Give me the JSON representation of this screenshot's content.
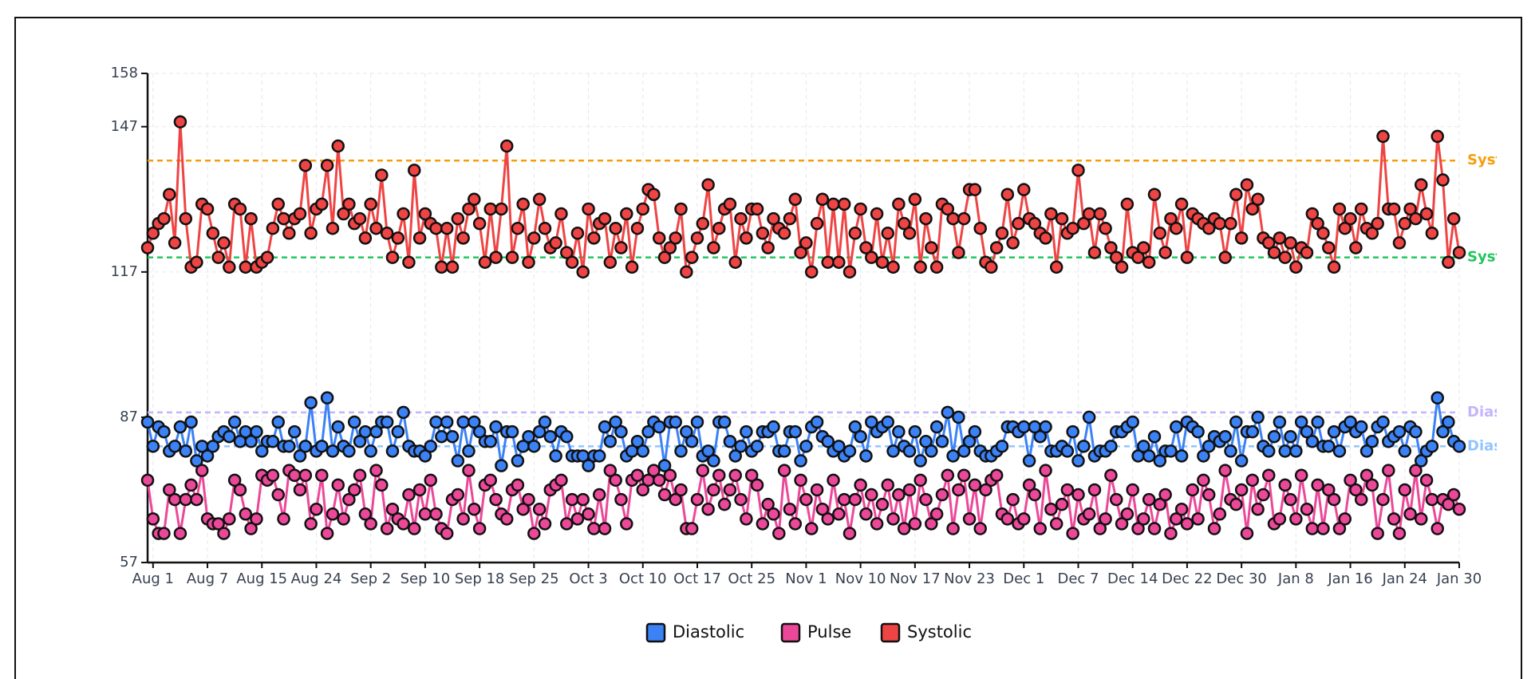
{
  "chart_data": {
    "type": "line",
    "categories": [
      null,
      "Aug 1",
      null,
      null,
      null,
      null,
      null,
      null,
      null,
      null,
      null,
      "Aug 7",
      null,
      null,
      null,
      null,
      null,
      null,
      null,
      null,
      null,
      "Aug 15",
      null,
      null,
      null,
      null,
      null,
      null,
      null,
      null,
      null,
      "Aug 24",
      null,
      null,
      null,
      null,
      null,
      null,
      null,
      null,
      null,
      "Sep 2",
      null,
      null,
      null,
      null,
      null,
      null,
      null,
      null,
      null,
      "Sep 10",
      null,
      null,
      null,
      null,
      null,
      null,
      null,
      null,
      null,
      "Sep 18",
      null,
      null,
      null,
      null,
      null,
      null,
      null,
      null,
      null,
      "Sep 25",
      null,
      null,
      null,
      null,
      null,
      null,
      null,
      null,
      null,
      "Oct 3",
      null,
      null,
      null,
      null,
      null,
      null,
      null,
      null,
      null,
      "Oct 10",
      null,
      null,
      null,
      null,
      null,
      null,
      null,
      null,
      null,
      "Oct 17",
      null,
      null,
      null,
      null,
      null,
      null,
      null,
      null,
      null,
      "Oct 25",
      null,
      null,
      null,
      null,
      null,
      null,
      null,
      null,
      null,
      "Nov 1",
      null,
      null,
      null,
      null,
      null,
      null,
      null,
      null,
      null,
      "Nov 10",
      null,
      null,
      null,
      null,
      null,
      null,
      null,
      null,
      null,
      "Nov 17",
      null,
      null,
      null,
      null,
      null,
      null,
      null,
      null,
      null,
      "Nov 23",
      null,
      null,
      null,
      null,
      null,
      null,
      null,
      null,
      null,
      "Dec 1",
      null,
      null,
      null,
      null,
      null,
      null,
      null,
      null,
      null,
      "Dec 7",
      null,
      null,
      null,
      null,
      null,
      null,
      null,
      null,
      null,
      "Dec 14",
      null,
      null,
      null,
      null,
      null,
      null,
      null,
      null,
      null,
      "Dec 22",
      null,
      null,
      null,
      null,
      null,
      null,
      null,
      null,
      null,
      "Dec 30",
      null,
      null,
      null,
      null,
      null,
      null,
      null,
      null,
      null,
      "Jan 8",
      null,
      null,
      null,
      null,
      null,
      null,
      null,
      null,
      null,
      "Jan 16",
      null,
      null,
      null,
      null,
      null,
      null,
      null,
      null,
      null,
      "Jan 24",
      null,
      null,
      null,
      null,
      null,
      null,
      null,
      null,
      null,
      "Jan 30"
    ],
    "series": [
      {
        "name": "Diastolic",
        "color": "#3b82f6",
        "values": [
          86,
          81,
          85,
          84,
          80,
          81,
          85,
          80,
          86,
          78,
          81,
          79,
          81,
          83,
          84,
          83,
          86,
          82,
          84,
          82,
          84,
          80,
          82,
          82,
          86,
          81,
          81,
          84,
          79,
          81,
          90,
          80,
          81,
          91,
          80,
          85,
          81,
          80,
          86,
          82,
          84,
          80,
          84,
          86,
          86,
          80,
          84,
          88,
          81,
          80,
          80,
          79,
          81,
          86,
          83,
          86,
          83,
          78,
          86,
          80,
          86,
          84,
          82,
          82,
          85,
          77,
          84,
          84,
          78,
          81,
          83,
          81,
          84,
          86,
          83,
          79,
          84,
          83,
          79,
          79,
          79,
          77,
          79,
          79,
          85,
          82,
          86,
          84,
          79,
          80,
          82,
          80,
          84,
          86,
          85,
          77,
          86,
          86,
          80,
          84,
          82,
          86,
          79,
          80,
          78,
          86,
          86,
          82,
          79,
          81,
          84,
          80,
          81,
          84,
          84,
          85,
          80,
          80,
          84,
          84,
          78,
          81,
          85,
          86,
          83,
          82,
          80,
          81,
          79,
          80,
          85,
          83,
          79,
          86,
          84,
          85,
          86,
          80,
          84,
          81,
          80,
          84,
          78,
          82,
          80,
          85,
          82,
          88,
          79,
          87,
          80,
          82,
          84,
          80,
          79,
          79,
          80,
          81,
          85,
          85,
          84,
          85,
          78,
          85,
          83,
          85,
          80,
          80,
          81,
          80,
          84,
          78,
          81,
          87,
          79,
          80,
          80,
          81,
          84,
          84,
          85,
          86,
          79,
          81,
          79,
          83,
          78,
          80,
          80,
          85,
          79,
          86,
          85,
          84,
          79,
          81,
          83,
          82,
          83,
          80,
          86,
          78,
          84,
          84,
          87,
          81,
          80,
          83,
          86,
          80,
          83,
          80,
          86,
          84,
          82,
          86,
          81,
          81,
          84,
          80,
          85,
          86,
          84,
          85,
          80,
          82,
          85,
          86,
          82,
          83,
          84,
          80,
          85,
          84,
          78,
          80,
          81,
          91,
          84,
          86,
          82,
          81
        ]
      },
      {
        "name": "Pulse",
        "color": "#ec4899",
        "values": [
          74,
          66,
          63,
          63,
          72,
          70,
          63,
          70,
          73,
          70,
          76,
          66,
          65,
          65,
          63,
          66,
          74,
          72,
          67,
          64,
          66,
          75,
          74,
          75,
          71,
          66,
          76,
          75,
          72,
          75,
          65,
          68,
          75,
          63,
          67,
          73,
          66,
          70,
          72,
          75,
          67,
          65,
          76,
          73,
          64,
          68,
          66,
          65,
          71,
          64,
          72,
          67,
          74,
          67,
          64,
          63,
          70,
          71,
          66,
          76,
          68,
          64,
          73,
          74,
          70,
          67,
          66,
          72,
          73,
          68,
          70,
          63,
          68,
          65,
          72,
          73,
          74,
          65,
          70,
          66,
          70,
          67,
          64,
          71,
          64,
          76,
          74,
          70,
          65,
          74,
          75,
          72,
          74,
          76,
          74,
          71,
          75,
          70,
          72,
          64,
          64,
          70,
          76,
          68,
          72,
          75,
          69,
          72,
          75,
          70,
          66,
          75,
          73,
          65,
          69,
          67,
          63,
          76,
          68,
          65,
          74,
          70,
          64,
          72,
          68,
          66,
          74,
          67,
          70,
          63,
          70,
          73,
          67,
          71,
          65,
          69,
          73,
          66,
          71,
          64,
          72,
          65,
          74,
          70,
          65,
          67,
          71,
          75,
          64,
          72,
          75,
          66,
          73,
          64,
          72,
          74,
          75,
          67,
          66,
          70,
          65,
          66,
          73,
          71,
          64,
          76,
          68,
          65,
          69,
          72,
          63,
          71,
          66,
          67,
          72,
          64,
          66,
          75,
          70,
          65,
          67,
          72,
          64,
          66,
          70,
          64,
          69,
          71,
          63,
          66,
          68,
          65,
          72,
          66,
          74,
          71,
          64,
          67,
          76,
          70,
          69,
          72,
          63,
          74,
          68,
          71,
          75,
          65,
          66,
          73,
          70,
          66,
          75,
          68,
          64,
          73,
          64,
          72,
          70,
          64,
          66,
          74,
          72,
          70,
          75,
          73,
          63,
          70,
          76,
          66,
          63,
          72,
          67,
          76,
          66,
          74,
          70,
          64,
          70,
          69,
          71,
          68
        ]
      },
      {
        "name": "Systolic",
        "color": "#ef4444",
        "values": [
          122,
          125,
          127,
          128,
          133,
          123,
          148,
          128,
          118,
          119,
          131,
          130,
          125,
          120,
          123,
          118,
          131,
          130,
          118,
          128,
          118,
          119,
          120,
          126,
          131,
          128,
          125,
          128,
          129,
          139,
          125,
          130,
          131,
          139,
          126,
          143,
          129,
          131,
          127,
          128,
          124,
          131,
          126,
          137,
          125,
          120,
          124,
          129,
          119,
          138,
          124,
          129,
          127,
          126,
          118,
          126,
          118,
          128,
          124,
          130,
          132,
          127,
          119,
          130,
          120,
          130,
          143,
          120,
          126,
          131,
          119,
          124,
          132,
          126,
          122,
          123,
          129,
          121,
          119,
          125,
          117,
          130,
          124,
          127,
          128,
          119,
          126,
          122,
          129,
          118,
          126,
          130,
          134,
          133,
          124,
          120,
          122,
          124,
          130,
          117,
          120,
          124,
          127,
          135,
          122,
          126,
          130,
          131,
          119,
          128,
          124,
          130,
          130,
          125,
          122,
          128,
          126,
          125,
          128,
          132,
          121,
          123,
          117,
          127,
          132,
          119,
          131,
          119,
          131,
          117,
          125,
          130,
          122,
          120,
          129,
          119,
          125,
          118,
          131,
          127,
          125,
          132,
          118,
          128,
          122,
          118,
          131,
          130,
          128,
          121,
          128,
          134,
          134,
          126,
          119,
          118,
          122,
          125,
          133,
          123,
          127,
          134,
          128,
          127,
          125,
          124,
          129,
          118,
          128,
          125,
          126,
          138,
          127,
          129,
          121,
          129,
          126,
          122,
          120,
          118,
          131,
          121,
          120,
          122,
          119,
          133,
          125,
          121,
          128,
          126,
          131,
          120,
          129,
          128,
          127,
          126,
          128,
          127,
          120,
          127,
          133,
          124,
          135,
          130,
          132,
          124,
          123,
          121,
          124,
          120,
          123,
          118,
          122,
          121,
          129,
          127,
          125,
          122,
          118,
          130,
          126,
          128,
          122,
          130,
          126,
          125,
          127,
          145,
          130,
          130,
          123,
          127,
          130,
          128,
          135,
          129,
          125,
          145,
          136,
          119,
          128,
          121
        ]
      }
    ],
    "reference_lines": [
      {
        "value": 140,
        "label": "Syst",
        "color": "#f59e0b"
      },
      {
        "value": 120,
        "label": "Syst",
        "color": "#22c55e"
      },
      {
        "value": 88,
        "label": "Dias",
        "color": "#c4b5fd"
      },
      {
        "value": 81,
        "label": "Dias",
        "color": "#93c5fd"
      }
    ],
    "ylim": [
      57,
      158
    ],
    "yticks": [
      57,
      87,
      117,
      147,
      158
    ],
    "grid": true,
    "legend": "bottom"
  }
}
